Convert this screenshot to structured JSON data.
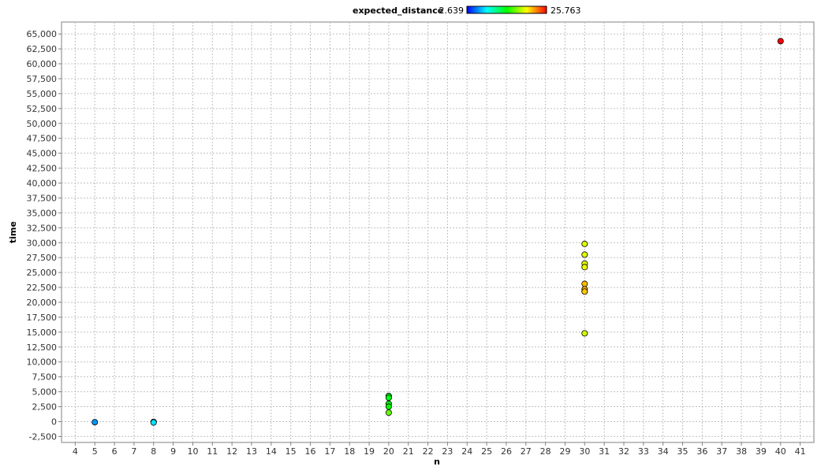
{
  "chart_data": {
    "type": "scatter",
    "xlabel": "n",
    "ylabel": "time",
    "xlim": [
      3.3,
      41.7
    ],
    "ylim": [
      -3500,
      67000
    ],
    "x_ticks": [
      4,
      5,
      6,
      7,
      8,
      9,
      10,
      11,
      12,
      13,
      14,
      15,
      16,
      17,
      18,
      19,
      20,
      21,
      22,
      23,
      24,
      25,
      26,
      27,
      28,
      29,
      30,
      31,
      32,
      33,
      34,
      35,
      36,
      37,
      38,
      39,
      40,
      41
    ],
    "y_ticks": [
      -2500,
      0,
      2500,
      5000,
      7500,
      10000,
      12500,
      15000,
      17500,
      20000,
      22500,
      25000,
      27500,
      30000,
      32500,
      35000,
      37500,
      40000,
      42500,
      45000,
      47500,
      50000,
      52500,
      55000,
      57500,
      60000,
      62500,
      65000
    ],
    "grid": true,
    "color_legend": {
      "title": "expected_distance",
      "min_label": "2.639",
      "max_label": "25.763",
      "min": 2.639,
      "max": 25.763,
      "placement": "top-center"
    },
    "points": [
      {
        "x": 5,
        "y": -100,
        "c": 6.0
      },
      {
        "x": 8,
        "y": -50,
        "c": 7.5
      },
      {
        "x": 8,
        "y": -150,
        "c": 7.8
      },
      {
        "x": 20,
        "y": 4300,
        "c": 13.5
      },
      {
        "x": 20,
        "y": 4000,
        "c": 13.7
      },
      {
        "x": 20,
        "y": 3000,
        "c": 14.0
      },
      {
        "x": 20,
        "y": 2500,
        "c": 14.3
      },
      {
        "x": 20,
        "y": 1500,
        "c": 16.5
      },
      {
        "x": 30,
        "y": 29800,
        "c": 19.2
      },
      {
        "x": 30,
        "y": 28000,
        "c": 19.4
      },
      {
        "x": 30,
        "y": 26500,
        "c": 19.3
      },
      {
        "x": 30,
        "y": 25900,
        "c": 19.6
      },
      {
        "x": 30,
        "y": 23100,
        "c": 21.5
      },
      {
        "x": 30,
        "y": 22200,
        "c": 21.8
      },
      {
        "x": 30,
        "y": 21800,
        "c": 21.2
      },
      {
        "x": 30,
        "y": 14800,
        "c": 19.0
      },
      {
        "x": 40,
        "y": 63800,
        "c": 25.763
      }
    ]
  }
}
